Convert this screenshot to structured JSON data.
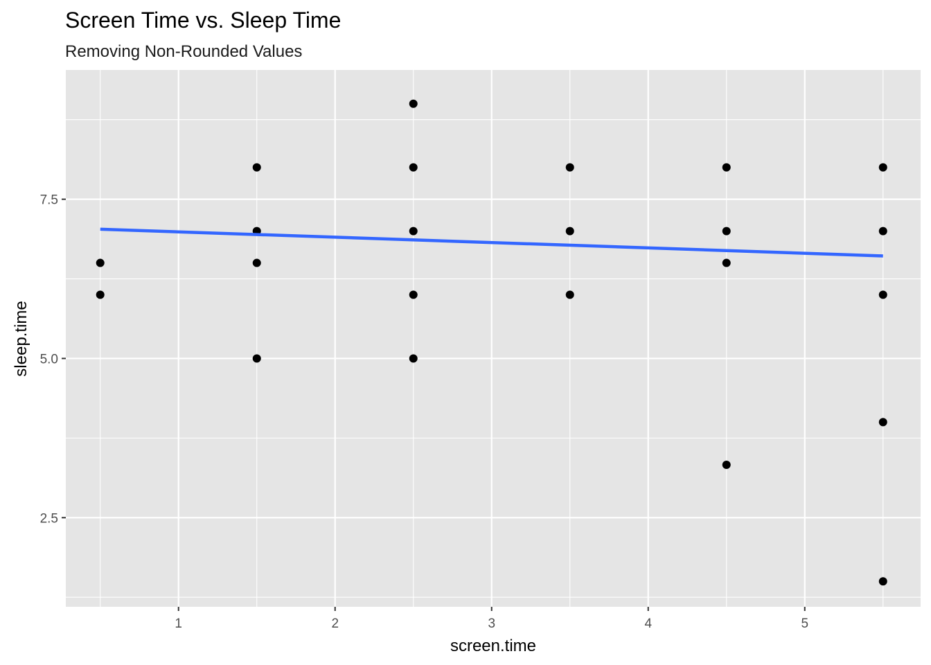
{
  "chart_data": {
    "type": "scatter",
    "title": "Screen Time vs. Sleep Time",
    "subtitle": "Removing Non-Rounded Values",
    "xlabel": "screen.time",
    "ylabel": "sleep.time",
    "xlim": [
      0.28,
      5.74
    ],
    "ylim": [
      1.1,
      9.53
    ],
    "x_ticks": [
      1,
      2,
      3,
      4,
      5
    ],
    "y_ticks": [
      2.5,
      5.0,
      7.5
    ],
    "x_tick_labels": [
      "1",
      "2",
      "3",
      "4",
      "5"
    ],
    "y_tick_labels": [
      "2.5",
      "5.0",
      "7.5"
    ],
    "grid": true,
    "points": [
      {
        "x": 0.5,
        "y": 6.5
      },
      {
        "x": 0.5,
        "y": 6
      },
      {
        "x": 1.5,
        "y": 8
      },
      {
        "x": 1.5,
        "y": 7
      },
      {
        "x": 1.5,
        "y": 6.5
      },
      {
        "x": 1.5,
        "y": 5
      },
      {
        "x": 2.5,
        "y": 9
      },
      {
        "x": 2.5,
        "y": 8
      },
      {
        "x": 2.5,
        "y": 7
      },
      {
        "x": 2.5,
        "y": 6
      },
      {
        "x": 2.5,
        "y": 5
      },
      {
        "x": 3.5,
        "y": 8
      },
      {
        "x": 3.5,
        "y": 7
      },
      {
        "x": 3.5,
        "y": 6
      },
      {
        "x": 4.5,
        "y": 8
      },
      {
        "x": 4.5,
        "y": 7
      },
      {
        "x": 4.5,
        "y": 6.5
      },
      {
        "x": 4.5,
        "y": 3.33
      },
      {
        "x": 5.5,
        "y": 8
      },
      {
        "x": 5.5,
        "y": 7
      },
      {
        "x": 5.5,
        "y": 6
      },
      {
        "x": 5.5,
        "y": 4
      },
      {
        "x": 5.5,
        "y": 1.5
      }
    ],
    "trend_line": {
      "x": [
        0.5,
        5.5
      ],
      "y": [
        7.03,
        6.61
      ],
      "color": "#3366ff"
    },
    "panel_color": "#e5e5e5",
    "grid_color": "#ffffff",
    "point_color": "#000000"
  }
}
